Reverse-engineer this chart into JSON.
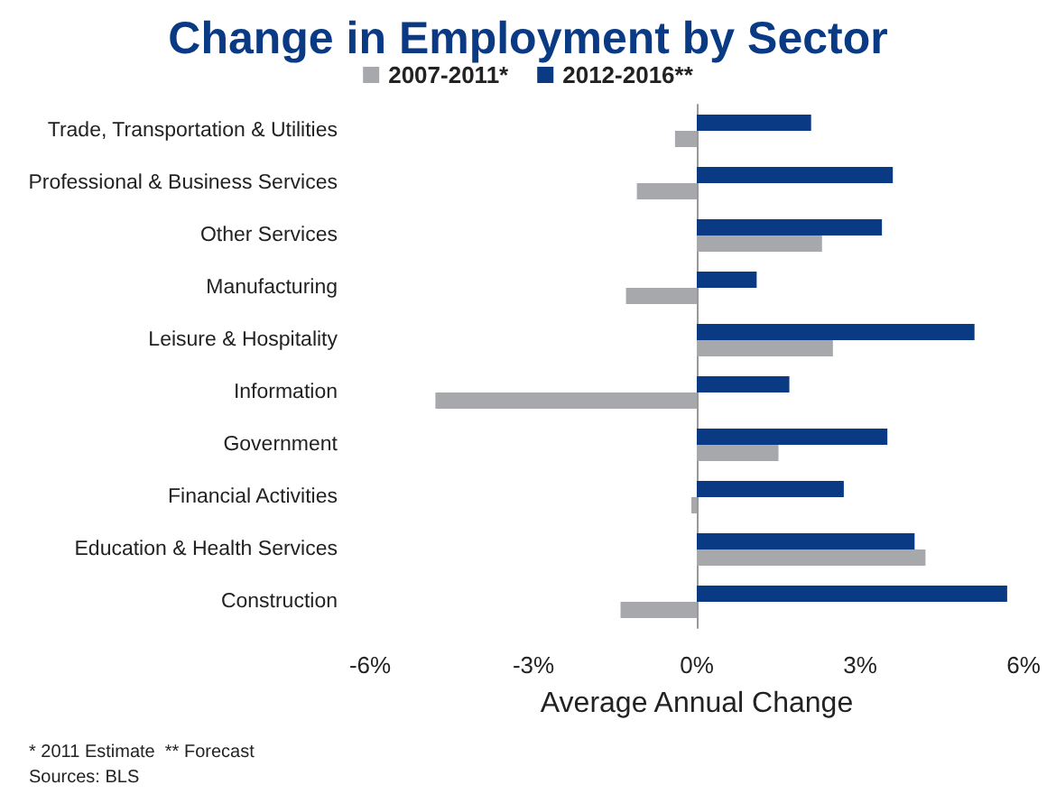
{
  "chart_data": {
    "type": "bar",
    "orientation": "horizontal",
    "title": "Change in Employment by Sector",
    "xlabel": "Average Annual Change",
    "categories": [
      "Trade, Transportation & Utilities",
      "Professional & Business Services",
      "Other Services",
      "Manufacturing",
      "Leisure & Hospitality",
      "Information",
      "Government",
      "Financial Activities",
      "Education & Health Services",
      "Construction"
    ],
    "series": [
      {
        "name": "2007-2011*",
        "color": "#a6a8ab",
        "values": [
          -0.4,
          -1.1,
          2.3,
          -1.3,
          2.5,
          -4.8,
          1.5,
          -0.1,
          4.2,
          -1.4
        ]
      },
      {
        "name": "2012-2016**",
        "color": "#0b3a85",
        "values": [
          2.1,
          3.6,
          3.4,
          1.1,
          5.1,
          1.7,
          3.5,
          2.7,
          4.0,
          5.7
        ]
      }
    ],
    "xlim": [
      -6,
      6
    ],
    "xticks": [
      {
        "value": -6,
        "label": "-6%"
      },
      {
        "value": -3,
        "label": "-3%"
      },
      {
        "value": 0,
        "label": "0%"
      },
      {
        "value": 3,
        "label": "3%"
      },
      {
        "value": 6,
        "label": "6%"
      }
    ],
    "legend": "top",
    "annotations": [
      "* 2011 Estimate  ** Forecast",
      "Sources: BLS"
    ]
  }
}
